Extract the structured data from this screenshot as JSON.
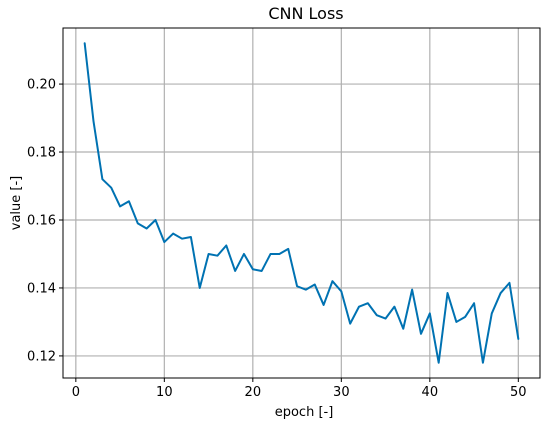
{
  "chart_data": {
    "type": "line",
    "title": "CNN Loss",
    "xlabel": "epoch [-]",
    "ylabel": "value [-]",
    "xlim": [
      -1.45,
      52.45
    ],
    "ylim": [
      0.1135,
      0.2165
    ],
    "xticks": [
      0,
      10,
      20,
      30,
      40,
      50
    ],
    "yticks": [
      0.12,
      0.14,
      0.16,
      0.18,
      0.2
    ],
    "xtick_labels": [
      "0",
      "10",
      "20",
      "30",
      "40",
      "50"
    ],
    "ytick_labels": [
      "0.12",
      "0.14",
      "0.16",
      "0.18",
      "0.20"
    ],
    "grid": true,
    "series": [
      {
        "color": "#0072b2",
        "x": [
          1,
          2,
          3,
          4,
          5,
          6,
          7,
          8,
          9,
          10,
          11,
          12,
          13,
          14,
          15,
          16,
          17,
          18,
          19,
          20,
          21,
          22,
          23,
          24,
          25,
          26,
          27,
          28,
          29,
          30,
          31,
          32,
          33,
          34,
          35,
          36,
          37,
          38,
          39,
          40,
          41,
          42,
          43,
          44,
          45,
          46,
          47,
          48,
          49,
          50
        ],
        "y": [
          0.212,
          0.189,
          0.172,
          0.1695,
          0.164,
          0.1655,
          0.159,
          0.1575,
          0.16,
          0.1535,
          0.156,
          0.1545,
          0.155,
          0.14,
          0.15,
          0.1495,
          0.1525,
          0.145,
          0.15,
          0.1455,
          0.145,
          0.15,
          0.15,
          0.1515,
          0.1405,
          0.1395,
          0.141,
          0.135,
          0.142,
          0.139,
          0.1295,
          0.1345,
          0.1355,
          0.132,
          0.131,
          0.1345,
          0.128,
          0.1395,
          0.1265,
          0.1325,
          0.118,
          0.1385,
          0.13,
          0.1315,
          0.1355,
          0.118,
          0.1325,
          0.1385,
          0.1415,
          0.125
        ]
      }
    ]
  }
}
